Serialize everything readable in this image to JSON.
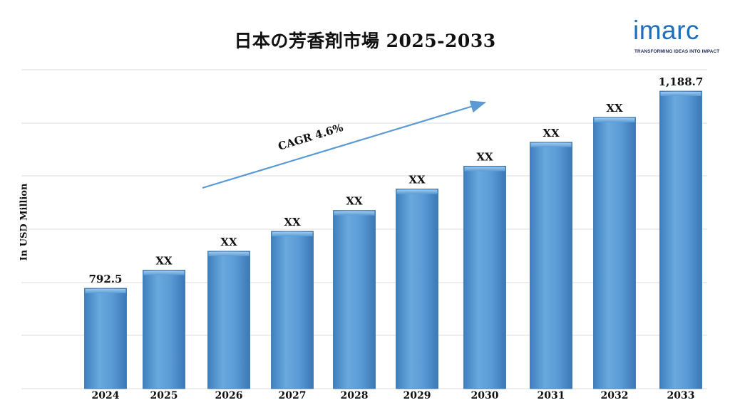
{
  "chart_data": {
    "type": "bar",
    "title": "日本の芳香剤市場 2025-2033",
    "ylabel": "In USD Million",
    "xlabel": "",
    "categories": [
      "2024",
      "2025",
      "2026",
      "2027",
      "2028",
      "2029",
      "2030",
      "2031",
      "2032",
      "2033"
    ],
    "values": [
      792.5,
      829,
      867,
      907,
      949,
      992,
      1038,
      1086,
      1136,
      1188.7
    ],
    "data_labels": [
      "792.5",
      "XX",
      "XX",
      "XX",
      "XX",
      "XX",
      "XX",
      "XX",
      "XX",
      "1,188.7"
    ],
    "ylim": [
      300,
      1250
    ],
    "grid": true,
    "bar_color": "#5b9bd5",
    "annotation": "CAGR 4.6%"
  },
  "logo": {
    "word": "imarc",
    "tagline": "TRANSFORMING IDEAS INTO IMPACT",
    "color": "#1f6fb8"
  }
}
